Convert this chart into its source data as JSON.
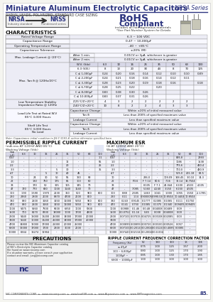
{
  "title": "Miniature Aluminum Electrolytic Capacitors",
  "series": "NRSA Series",
  "header_color": "#2d3580",
  "subtitle": "RADIAL LEADS, POLARIZED, STANDARD CASE SIZING",
  "bg_color": "#f5f5f0"
}
